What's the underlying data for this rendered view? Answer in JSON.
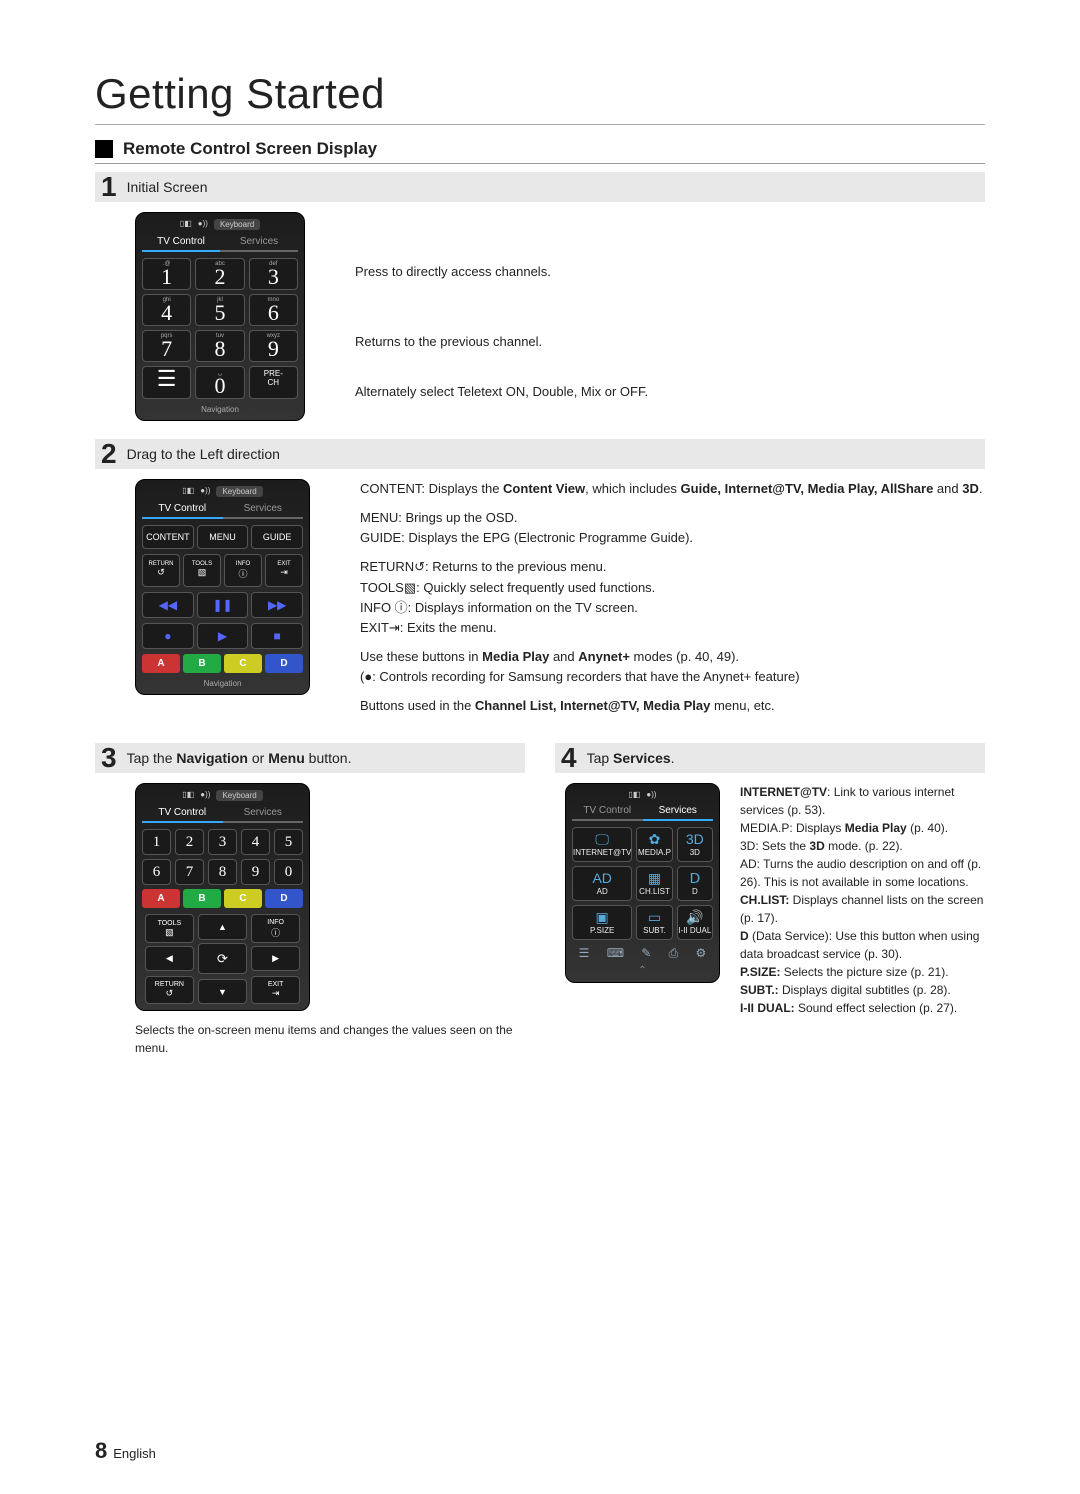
{
  "title": "Getting Started",
  "subtitle": "Remote Control Screen Display",
  "remote": {
    "keyboard": "Keyboard",
    "tabs": [
      "TV Control",
      "Services"
    ],
    "nav_label": "Navigation",
    "pad": [
      {
        "n": "1",
        "l": ".@"
      },
      {
        "n": "2",
        "l": "abc"
      },
      {
        "n": "3",
        "l": "def"
      },
      {
        "n": "4",
        "l": "ghi"
      },
      {
        "n": "5",
        "l": "jkl"
      },
      {
        "n": "6",
        "l": "mno"
      },
      {
        "n": "7",
        "l": "pqrs"
      },
      {
        "n": "8",
        "l": "tuv"
      },
      {
        "n": "9",
        "l": "wxyz"
      },
      {
        "n": "☰",
        "l": ""
      },
      {
        "n": "0",
        "l": "␣"
      },
      {
        "n": "",
        "l": "PRE-CH",
        "ln": "PRE-\nCH"
      }
    ],
    "pad5": [
      "1",
      "2",
      "3",
      "4",
      "5",
      "6",
      "7",
      "8",
      "9",
      "0"
    ],
    "row2": [
      "CONTENT",
      "MENU",
      "GUIDE"
    ],
    "row3": [
      [
        "RETURN",
        "↺"
      ],
      [
        "TOOLS",
        "▧"
      ],
      [
        "INFO",
        "ⓘ"
      ],
      [
        "EXIT",
        "⇥"
      ]
    ],
    "playback": [
      [
        "◀◀",
        "❚❚",
        "▶▶"
      ],
      [
        "●",
        "▶",
        "■"
      ]
    ],
    "colors": [
      "A",
      "B",
      "C",
      "D"
    ],
    "dpad": {
      "tools": "TOOLS",
      "info": "INFO",
      "return": "RETURN",
      "exit": "EXIT",
      "center": "⟳"
    }
  },
  "s1": {
    "num": "1",
    "title": "Initial Screen",
    "d1": "Press to directly access channels.",
    "d2": "Returns to the previous channel.",
    "d3": "Alternately select Teletext ON, Double, Mix or OFF."
  },
  "s2": {
    "num": "2",
    "title": "Drag to the Left direction",
    "p1a": "CONTENT: Displays the ",
    "p1b": "Content View",
    "p1c": ", which includes ",
    "p1d": "Guide, Internet@TV, Media Play, AllShare",
    "p1e": " and ",
    "p1f": "3D",
    "p1g": ".",
    "p2": "MENU: Brings up the OSD.",
    "p3": "GUIDE: Displays the EPG (Electronic Programme Guide).",
    "p4": "RETURN↺: Returns to the previous menu.",
    "p5": "TOOLS▧: Quickly select frequently used functions.",
    "p6": "INFO ⓘ: Displays information on the TV screen.",
    "p7": "EXIT⇥: Exits the menu.",
    "p8a": "Use these buttons in ",
    "p8b": "Media Play",
    "p8c": " and ",
    "p8d": "Anynet+",
    "p8e": " modes (p. 40, 49).",
    "p9": "(●: Controls recording for Samsung recorders that have the Anynet+ feature)",
    "p10a": "Buttons used in the ",
    "p10b": "Channel List, Internet@TV, Media Play",
    "p10c": " menu, etc."
  },
  "s3": {
    "num": "3",
    "t1": "Tap the ",
    "t2": "Navigation",
    "t3": " or ",
    "t4": "Menu",
    "t5": " button.",
    "caption": "Selects the on-screen menu items and changes the values seen on the menu."
  },
  "s4": {
    "num": "4",
    "t1": "Tap ",
    "t2": "Services",
    "t3": ".",
    "services": [
      [
        "INTERNET@TV",
        "🖵"
      ],
      [
        "MEDIA.P",
        "✿"
      ],
      [
        "3D",
        "3D"
      ],
      [
        "AD",
        "AD"
      ],
      [
        "CH.LIST",
        "▦"
      ],
      [
        "D",
        "Ⅾ"
      ],
      [
        "P.SIZE",
        "▣"
      ],
      [
        "SUBT.",
        "▭"
      ],
      [
        "I-II DUAL",
        "🔊"
      ]
    ],
    "bottom": [
      "☰",
      "⌨",
      "✎",
      "⎙",
      "⚙"
    ],
    "body": "INTERNET@TV: Link to various internet services (p. 53).\nMEDIA.P: Displays Media Play (p. 40).\n3D: Sets the 3D mode. (p. 22).\nAD: Turns the audio description on and off (p. 26). This is not available in some locations.\nCH.LIST: Displays channel lists on the screen (p. 17).\nD (Data Service): Use this button when using data broadcast service (p. 30).\nP.SIZE: Selects the picture size (p. 21).\nSUBT.: Displays digital subtitles (p. 28).\nI-II DUAL: Sound effect selection (p. 27).",
    "body_html": {
      "l1a": "INTERNET@TV",
      "l1b": ": Link to various internet services (p. 53).",
      "l2a": "MEDIA.P: ",
      "l2b": "Displays ",
      "l2c": "Media Play",
      "l2d": " (p. 40).",
      "l3a": "3D:",
      "l3b": " Sets the ",
      "l3c": "3D",
      "l3d": " mode. (p. 22).",
      "l4": "AD: Turns the audio description on and off (p. 26). This is not available in some locations.",
      "l5a": "CH.LIST:",
      "l5b": " Displays channel lists on the screen (p. 17).",
      "l6a": "D",
      "l6b": " (Data Service): Use this button when using data broadcast service (p. 30).",
      "l7a": "P.SIZE:",
      "l7b": " Selects the picture size (p. 21).",
      "l8a": "SUBT.:",
      "l8b": " Displays digital subtitles (p. 28).",
      "l9a": "I-II DUAL:",
      "l9b": " Sound effect selection (p. 27)."
    }
  },
  "footer": {
    "page": "8",
    "lang": "English"
  }
}
